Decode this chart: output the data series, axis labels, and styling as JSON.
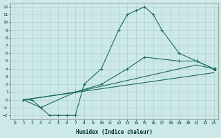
{
  "xlabel": "Humidex (Indice chaleur)",
  "bg_color": "#cce8e8",
  "grid_color": "#b0d0d0",
  "line_color": "#1a6b5a",
  "xlim": [
    -0.5,
    23.5
  ],
  "ylim": [
    -2.5,
    12.5
  ],
  "xticks": [
    0,
    1,
    2,
    3,
    4,
    5,
    6,
    7,
    8,
    9,
    10,
    11,
    12,
    13,
    14,
    15,
    16,
    17,
    18,
    19,
    20,
    21,
    22,
    23
  ],
  "yticks": [
    -2,
    -1,
    0,
    1,
    2,
    3,
    4,
    5,
    6,
    7,
    8,
    9,
    10,
    11,
    12
  ],
  "curve1_x": [
    1,
    2,
    3,
    4,
    5,
    6,
    7,
    8,
    10,
    12,
    13,
    14,
    15,
    16,
    17,
    19,
    21,
    23
  ],
  "curve1_y": [
    0,
    0,
    -1,
    -2,
    -2,
    -2,
    -2,
    2,
    4,
    9,
    11,
    11.5,
    12,
    11,
    9,
    6,
    5,
    4
  ],
  "curve2_x": [
    1,
    3,
    7,
    10,
    13,
    15,
    19,
    21,
    23
  ],
  "curve2_y": [
    0,
    -1,
    1,
    2,
    4,
    5.5,
    5,
    5,
    4
  ],
  "curve3_x": [
    1,
    7,
    15,
    21,
    23
  ],
  "curve3_y": [
    0,
    1,
    3,
    4.5,
    4
  ],
  "curve4_x": [
    1,
    23
  ],
  "curve4_y": [
    0,
    3.5
  ]
}
